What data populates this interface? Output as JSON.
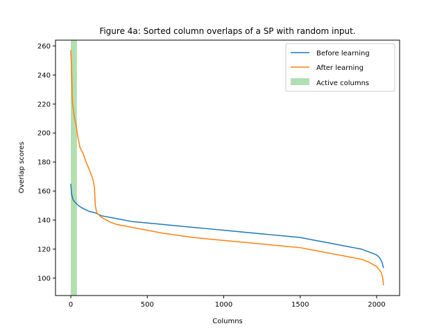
{
  "chart_data": {
    "type": "line",
    "title": "Figure 4a: Sorted column overlaps of a SP with random input.",
    "xlabel": "Columns",
    "ylabel": "Overlap scores",
    "xlim": [
      -100,
      2150
    ],
    "ylim": [
      88,
      264
    ],
    "xticks": [
      0,
      500,
      1000,
      1500,
      2000
    ],
    "yticks": [
      100,
      120,
      140,
      160,
      180,
      200,
      220,
      240,
      260
    ],
    "grid": false,
    "legend_position": "top-right",
    "active_columns": {
      "name": "Active columns",
      "x_start": 0,
      "x_end": 40,
      "color": "#b2dfb2"
    },
    "series": [
      {
        "name": "Before learning",
        "color": "#1f77b4",
        "points": [
          [
            0,
            165
          ],
          [
            5,
            158
          ],
          [
            15,
            154
          ],
          [
            30,
            152
          ],
          [
            50,
            150
          ],
          [
            80,
            148
          ],
          [
            120,
            146
          ],
          [
            160,
            145
          ],
          [
            200,
            143
          ],
          [
            300,
            141
          ],
          [
            400,
            139
          ],
          [
            500,
            138
          ],
          [
            600,
            137
          ],
          [
            700,
            136
          ],
          [
            800,
            135
          ],
          [
            900,
            134
          ],
          [
            1000,
            133
          ],
          [
            1100,
            132
          ],
          [
            1200,
            131
          ],
          [
            1300,
            130
          ],
          [
            1400,
            129
          ],
          [
            1500,
            128
          ],
          [
            1600,
            126
          ],
          [
            1700,
            124
          ],
          [
            1800,
            122
          ],
          [
            1900,
            120
          ],
          [
            1950,
            118
          ],
          [
            2000,
            116
          ],
          [
            2020,
            114
          ],
          [
            2035,
            111
          ],
          [
            2045,
            107
          ]
        ]
      },
      {
        "name": "After learning",
        "color": "#ff7f0e",
        "points": [
          [
            0,
            257
          ],
          [
            5,
            245
          ],
          [
            10,
            222
          ],
          [
            20,
            213
          ],
          [
            35,
            205
          ],
          [
            45,
            198
          ],
          [
            60,
            190
          ],
          [
            80,
            186
          ],
          [
            100,
            180
          ],
          [
            120,
            175
          ],
          [
            135,
            171
          ],
          [
            145,
            168
          ],
          [
            155,
            162
          ],
          [
            160,
            150
          ],
          [
            170,
            145
          ],
          [
            200,
            142
          ],
          [
            250,
            139
          ],
          [
            300,
            137
          ],
          [
            400,
            135
          ],
          [
            500,
            133
          ],
          [
            600,
            131
          ],
          [
            700,
            129.5
          ],
          [
            800,
            128
          ],
          [
            900,
            127
          ],
          [
            1000,
            126
          ],
          [
            1100,
            125
          ],
          [
            1200,
            124
          ],
          [
            1300,
            123
          ],
          [
            1400,
            122
          ],
          [
            1500,
            121
          ],
          [
            1600,
            119
          ],
          [
            1700,
            117
          ],
          [
            1800,
            115
          ],
          [
            1900,
            113
          ],
          [
            1950,
            111
          ],
          [
            2000,
            108
          ],
          [
            2030,
            104
          ],
          [
            2040,
            100
          ],
          [
            2045,
            95
          ]
        ]
      }
    ]
  }
}
